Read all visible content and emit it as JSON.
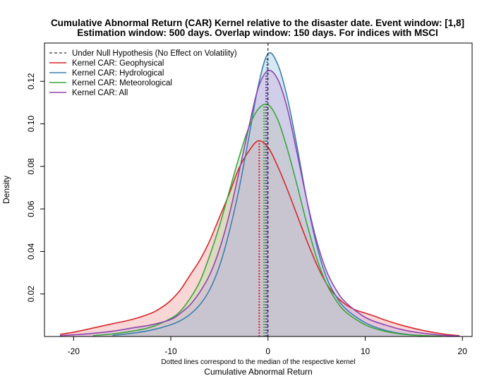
{
  "chart_data": {
    "type": "area",
    "title_line1": "Cumulative Abnormal Return (CAR) Kernel relative to the disaster date. Event window: [1,8]",
    "title_line2": "Estimation window: 500 days. Overlap window: 150 days. For indices with MSCI",
    "xlabel": "Cumulative Abnormal Return",
    "ylabel": "Density",
    "note": "Dotted lines correspond to the median of the respective kernel",
    "xlim": [
      -23,
      21
    ],
    "ylim": [
      0,
      0.138
    ],
    "x_ticks": [
      -20,
      -10,
      0,
      10,
      20
    ],
    "x_tick_labels": [
      "-20",
      "-10",
      "0",
      "10",
      "20"
    ],
    "y_ticks": [
      0.02,
      0.04,
      0.06,
      0.08,
      0.1,
      0.12
    ],
    "y_tick_labels": [
      "0.02",
      "0.04",
      "0.06",
      "0.08",
      "0.10",
      "0.12"
    ],
    "legend_position": "top-left",
    "null_hypothesis": {
      "name": "Under Null Hypothesis (No Effect on Volatility)",
      "x": 0,
      "color": "#000000"
    },
    "series": [
      {
        "name": "Kernel CAR: Geophysical",
        "color": "#d62728",
        "fill": "#f4a6a6",
        "median": -0.9,
        "x": [
          -21.4,
          -20,
          -18,
          -16,
          -14,
          -12,
          -11,
          -10,
          -9,
          -8,
          -7,
          -6,
          -5,
          -4,
          -3,
          -2,
          -1,
          0,
          1,
          2,
          3,
          4,
          5,
          6,
          7,
          8,
          9,
          10,
          11,
          12,
          14,
          16,
          18,
          19.7
        ],
        "y": [
          0.001,
          0.002,
          0.004,
          0.006,
          0.008,
          0.011,
          0.0135,
          0.017,
          0.022,
          0.029,
          0.036,
          0.045,
          0.056,
          0.067,
          0.079,
          0.087,
          0.092,
          0.089,
          0.08,
          0.069,
          0.057,
          0.045,
          0.034,
          0.025,
          0.019,
          0.015,
          0.0125,
          0.011,
          0.0095,
          0.0078,
          0.005,
          0.0028,
          0.0012,
          0.0004
        ]
      },
      {
        "name": "Kernel CAR: Hydrological",
        "color": "#3a7fae",
        "fill": "#a9cde4",
        "median": -0.1,
        "x": [
          -16,
          -14,
          -12,
          -10,
          -9,
          -8,
          -7,
          -6,
          -5,
          -4,
          -3,
          -2,
          -1,
          0,
          1,
          2,
          3,
          4,
          5,
          6,
          7,
          8,
          10,
          12,
          14,
          16,
          17.5
        ],
        "y": [
          0.0005,
          0.0015,
          0.003,
          0.0055,
          0.0075,
          0.0105,
          0.015,
          0.022,
          0.033,
          0.049,
          0.069,
          0.093,
          0.118,
          0.133,
          0.128,
          0.112,
          0.089,
          0.064,
          0.043,
          0.028,
          0.019,
          0.013,
          0.0065,
          0.003,
          0.0012,
          0.0004,
          0.0001
        ]
      },
      {
        "name": "Kernel CAR: Meteorological",
        "color": "#3aa63a",
        "fill": "#b8e0a8",
        "median": -0.4,
        "x": [
          -18,
          -16,
          -14,
          -12,
          -10,
          -9,
          -8,
          -7,
          -6,
          -5,
          -4,
          -3,
          -2,
          -1,
          0,
          1,
          2,
          3,
          4,
          5,
          6,
          7,
          8,
          10,
          12,
          14,
          16,
          18
        ],
        "y": [
          0.0004,
          0.0012,
          0.0025,
          0.0045,
          0.0085,
          0.012,
          0.018,
          0.026,
          0.038,
          0.052,
          0.068,
          0.084,
          0.098,
          0.107,
          0.109,
          0.102,
          0.088,
          0.071,
          0.053,
          0.037,
          0.025,
          0.017,
          0.0115,
          0.0055,
          0.0025,
          0.001,
          0.0004,
          0.0001
        ]
      },
      {
        "name": "Kernel CAR: All",
        "color": "#8e44ad",
        "fill": "#c9b0dd",
        "median": -0.2,
        "x": [
          -21.4,
          -20,
          -18,
          -16,
          -14,
          -12,
          -10,
          -9,
          -8,
          -7,
          -6,
          -5,
          -4,
          -3,
          -2,
          -1,
          0,
          1,
          2,
          3,
          4,
          5,
          6,
          7,
          8,
          10,
          12,
          14,
          16,
          18,
          19.7
        ],
        "y": [
          0.0004,
          0.0008,
          0.0015,
          0.0025,
          0.004,
          0.0055,
          0.008,
          0.011,
          0.015,
          0.021,
          0.029,
          0.041,
          0.057,
          0.077,
          0.098,
          0.117,
          0.125,
          0.121,
          0.107,
          0.086,
          0.064,
          0.045,
          0.031,
          0.022,
          0.016,
          0.009,
          0.0055,
          0.003,
          0.0015,
          0.0006,
          0.0002
        ]
      }
    ]
  }
}
